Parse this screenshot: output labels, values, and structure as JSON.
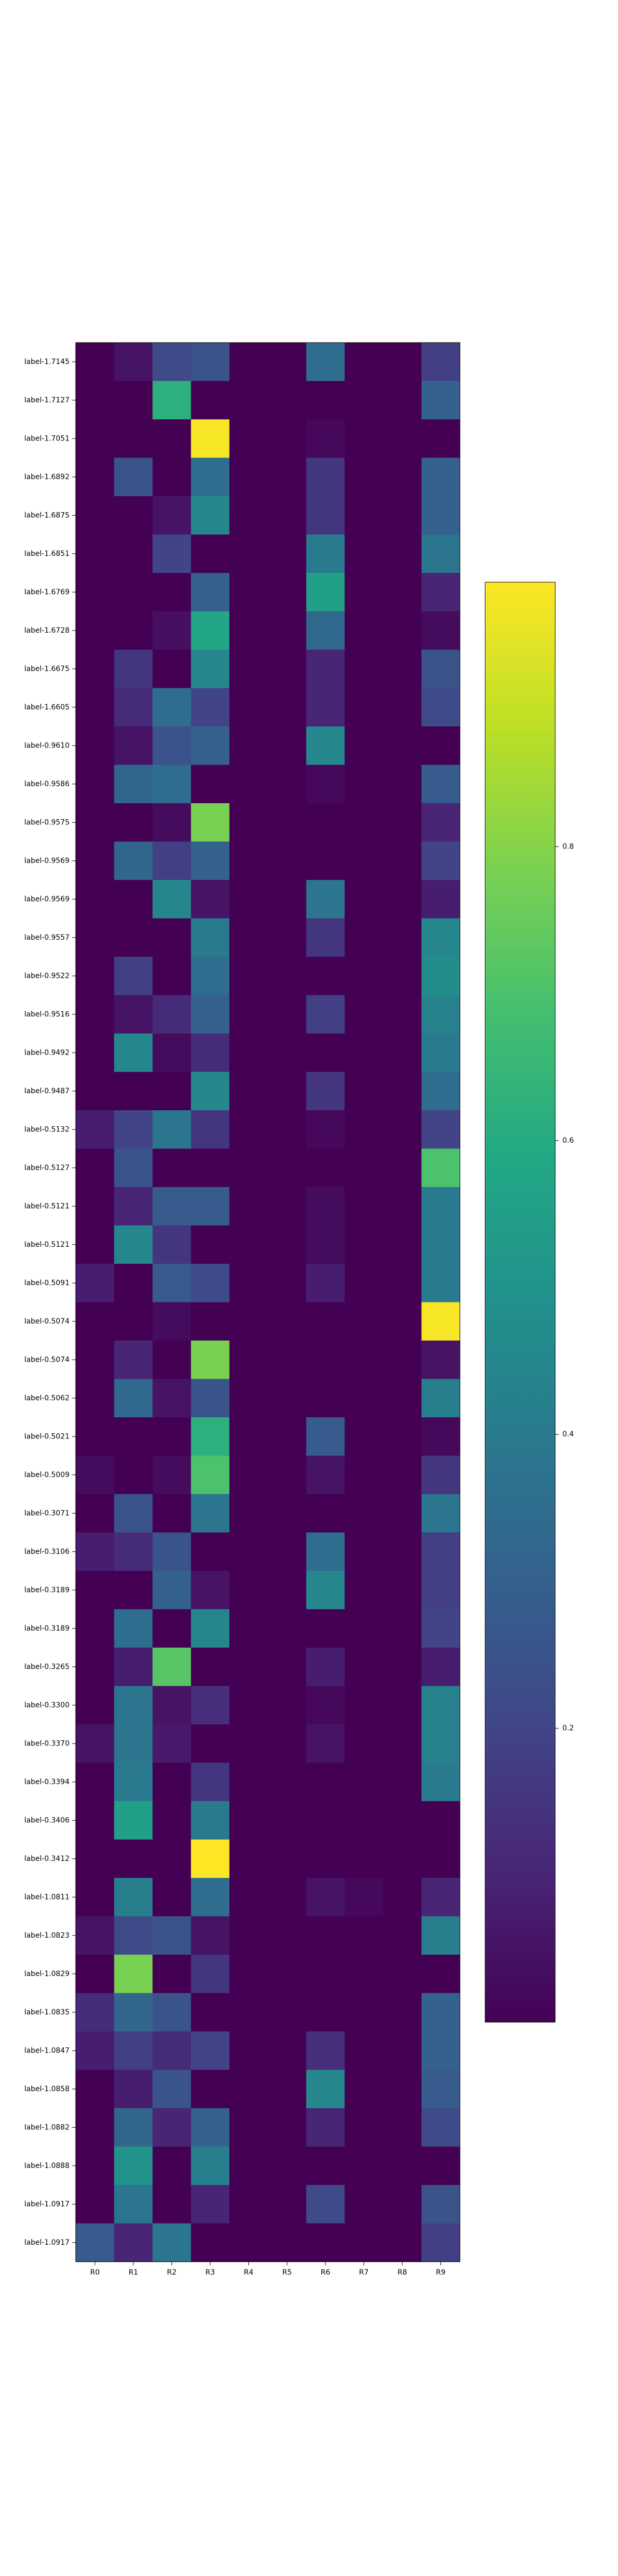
{
  "chart_data": {
    "type": "heatmap",
    "title": "",
    "xlabel": "",
    "ylabel": "",
    "colormap": "viridis",
    "x_categories": [
      "R0",
      "R1",
      "R2",
      "R3",
      "R4",
      "R5",
      "R6",
      "R7",
      "R8",
      "R9"
    ],
    "y_categories": [
      "label-1.7145",
      "label-1.7127",
      "label-1.7051",
      "label-1.6892",
      "label-1.6875",
      "label-1.6851",
      "label-1.6769",
      "label-1.6728",
      "label-1.6675",
      "label-1.6605",
      "label-0.9610",
      "label-0.9586",
      "label-0.9575",
      "label-0.9569",
      "label-0.9569",
      "label-0.9557",
      "label-0.9522",
      "label-0.9516",
      "label-0.9492",
      "label-0.9487",
      "label-0.5132",
      "label-0.5127",
      "label-0.5121",
      "label-0.5121",
      "label-0.5091",
      "label-0.5074",
      "label-0.5074",
      "label-0.5062",
      "label-0.5021",
      "label-0.5009",
      "label-0.3071",
      "label-0.3106",
      "label-0.3189",
      "label-0.3189",
      "label-0.3265",
      "label-0.3300",
      "label-0.3370",
      "label-0.3394",
      "label-0.3406",
      "label-0.3412",
      "label-1.0811",
      "label-1.0823",
      "label-1.0829",
      "label-1.0835",
      "label-1.0847",
      "label-1.0858",
      "label-1.0882",
      "label-1.0888",
      "label-1.0917",
      "label-1.0917"
    ],
    "values": [
      [
        0.0,
        0.05,
        0.22,
        0.25,
        0.0,
        0.0,
        0.35,
        0.0,
        0.0,
        0.18
      ],
      [
        0.0,
        0.0,
        0.62,
        0.0,
        0.0,
        0.0,
        0.0,
        0.0,
        0.0,
        0.3
      ],
      [
        0.0,
        0.0,
        0.0,
        0.97,
        0.0,
        0.0,
        0.02,
        0.0,
        0.0,
        0.0
      ],
      [
        0.0,
        0.25,
        0.0,
        0.35,
        0.0,
        0.0,
        0.15,
        0.0,
        0.0,
        0.3
      ],
      [
        0.0,
        0.0,
        0.05,
        0.45,
        0.0,
        0.0,
        0.15,
        0.0,
        0.0,
        0.3
      ],
      [
        0.0,
        0.0,
        0.2,
        0.0,
        0.0,
        0.0,
        0.4,
        0.0,
        0.0,
        0.38
      ],
      [
        0.0,
        0.0,
        0.0,
        0.3,
        0.0,
        0.0,
        0.55,
        0.0,
        0.0,
        0.1
      ],
      [
        0.0,
        0.0,
        0.04,
        0.58,
        0.0,
        0.0,
        0.33,
        0.0,
        0.0,
        0.03
      ],
      [
        0.0,
        0.15,
        0.0,
        0.45,
        0.0,
        0.0,
        0.1,
        0.0,
        0.0,
        0.25
      ],
      [
        0.0,
        0.12,
        0.35,
        0.2,
        0.0,
        0.0,
        0.1,
        0.0,
        0.0,
        0.22
      ],
      [
        0.0,
        0.05,
        0.25,
        0.3,
        0.0,
        0.0,
        0.45,
        0.0,
        0.0,
        0.0
      ],
      [
        0.0,
        0.32,
        0.35,
        0.0,
        0.0,
        0.0,
        0.02,
        0.0,
        0.0,
        0.28
      ],
      [
        0.0,
        0.0,
        0.03,
        0.78,
        0.0,
        0.0,
        0.0,
        0.0,
        0.0,
        0.1
      ],
      [
        0.0,
        0.32,
        0.18,
        0.3,
        0.0,
        0.0,
        0.0,
        0.0,
        0.0,
        0.2
      ],
      [
        0.0,
        0.0,
        0.45,
        0.05,
        0.0,
        0.0,
        0.38,
        0.0,
        0.0,
        0.08
      ],
      [
        0.0,
        0.0,
        0.0,
        0.4,
        0.0,
        0.0,
        0.15,
        0.0,
        0.0,
        0.45
      ],
      [
        0.0,
        0.18,
        0.0,
        0.35,
        0.0,
        0.0,
        0.0,
        0.0,
        0.0,
        0.48
      ],
      [
        0.0,
        0.05,
        0.12,
        0.3,
        0.0,
        0.0,
        0.18,
        0.0,
        0.0,
        0.43
      ],
      [
        0.0,
        0.45,
        0.03,
        0.12,
        0.0,
        0.0,
        0.0,
        0.0,
        0.0,
        0.4
      ],
      [
        0.0,
        0.0,
        0.0,
        0.45,
        0.0,
        0.0,
        0.15,
        0.0,
        0.0,
        0.35
      ],
      [
        0.08,
        0.2,
        0.38,
        0.15,
        0.0,
        0.0,
        0.02,
        0.0,
        0.0,
        0.2
      ],
      [
        0.0,
        0.25,
        0.0,
        0.0,
        0.0,
        0.0,
        0.0,
        0.0,
        0.0,
        0.7
      ],
      [
        0.0,
        0.1,
        0.28,
        0.28,
        0.0,
        0.0,
        0.03,
        0.0,
        0.0,
        0.4
      ],
      [
        0.0,
        0.45,
        0.15,
        0.0,
        0.0,
        0.0,
        0.03,
        0.0,
        0.0,
        0.4
      ],
      [
        0.08,
        0.0,
        0.28,
        0.22,
        0.0,
        0.0,
        0.08,
        0.0,
        0.0,
        0.4
      ],
      [
        0.0,
        0.0,
        0.03,
        0.0,
        0.0,
        0.0,
        0.0,
        0.0,
        0.0,
        0.97
      ],
      [
        0.0,
        0.1,
        0.0,
        0.78,
        0.0,
        0.0,
        0.0,
        0.0,
        0.0,
        0.05
      ],
      [
        0.0,
        0.33,
        0.05,
        0.25,
        0.0,
        0.0,
        0.0,
        0.0,
        0.0,
        0.42
      ],
      [
        0.0,
        0.0,
        0.0,
        0.62,
        0.0,
        0.0,
        0.28,
        0.0,
        0.0,
        0.02
      ],
      [
        0.03,
        0.0,
        0.03,
        0.7,
        0.0,
        0.0,
        0.05,
        0.0,
        0.0,
        0.15
      ],
      [
        0.0,
        0.25,
        0.0,
        0.38,
        0.0,
        0.0,
        0.0,
        0.0,
        0.0,
        0.38
      ],
      [
        0.08,
        0.12,
        0.25,
        0.0,
        0.0,
        0.0,
        0.35,
        0.0,
        0.0,
        0.18
      ],
      [
        0.0,
        0.0,
        0.3,
        0.05,
        0.0,
        0.0,
        0.45,
        0.0,
        0.0,
        0.18
      ],
      [
        0.0,
        0.35,
        0.0,
        0.45,
        0.0,
        0.0,
        0.0,
        0.0,
        0.0,
        0.2
      ],
      [
        0.0,
        0.08,
        0.72,
        0.0,
        0.0,
        0.0,
        0.08,
        0.0,
        0.0,
        0.08
      ],
      [
        0.0,
        0.38,
        0.05,
        0.13,
        0.0,
        0.0,
        0.02,
        0.0,
        0.0,
        0.43
      ],
      [
        0.05,
        0.38,
        0.07,
        0.0,
        0.0,
        0.0,
        0.05,
        0.0,
        0.0,
        0.43
      ],
      [
        0.0,
        0.4,
        0.0,
        0.15,
        0.0,
        0.0,
        0.0,
        0.0,
        0.0,
        0.4
      ],
      [
        0.0,
        0.55,
        0.0,
        0.4,
        0.0,
        0.0,
        0.0,
        0.0,
        0.0,
        0.0
      ],
      [
        0.0,
        0.0,
        0.0,
        0.98,
        0.0,
        0.0,
        0.0,
        0.0,
        0.0,
        0.0
      ],
      [
        0.0,
        0.42,
        0.0,
        0.35,
        0.0,
        0.0,
        0.05,
        0.02,
        0.0,
        0.1
      ],
      [
        0.05,
        0.22,
        0.25,
        0.05,
        0.0,
        0.0,
        0.0,
        0.0,
        0.0,
        0.42
      ],
      [
        0.0,
        0.78,
        0.0,
        0.15,
        0.0,
        0.0,
        0.0,
        0.0,
        0.0,
        0.0
      ],
      [
        0.12,
        0.32,
        0.25,
        0.0,
        0.0,
        0.0,
        0.0,
        0.0,
        0.0,
        0.3
      ],
      [
        0.08,
        0.18,
        0.12,
        0.2,
        0.0,
        0.0,
        0.13,
        0.0,
        0.0,
        0.3
      ],
      [
        0.0,
        0.08,
        0.25,
        0.0,
        0.0,
        0.0,
        0.45,
        0.0,
        0.0,
        0.28
      ],
      [
        0.0,
        0.32,
        0.1,
        0.3,
        0.0,
        0.0,
        0.1,
        0.0,
        0.0,
        0.22
      ],
      [
        0.0,
        0.5,
        0.0,
        0.42,
        0.0,
        0.0,
        0.0,
        0.0,
        0.0,
        0.0
      ],
      [
        0.0,
        0.38,
        0.0,
        0.1,
        0.0,
        0.0,
        0.22,
        0.0,
        0.0,
        0.25
      ],
      [
        0.28,
        0.1,
        0.38,
        0.0,
        0.0,
        0.0,
        0.0,
        0.0,
        0.0,
        0.18
      ]
    ],
    "vmin": 0.0,
    "vmax": 0.98,
    "colorbar_ticks": [
      0.2,
      0.4,
      0.6,
      0.8
    ],
    "colorbar_tick_labels": [
      "0.2",
      "0.4",
      "0.6",
      "0.8"
    ],
    "grid": false,
    "legend": "colorbar-right"
  }
}
